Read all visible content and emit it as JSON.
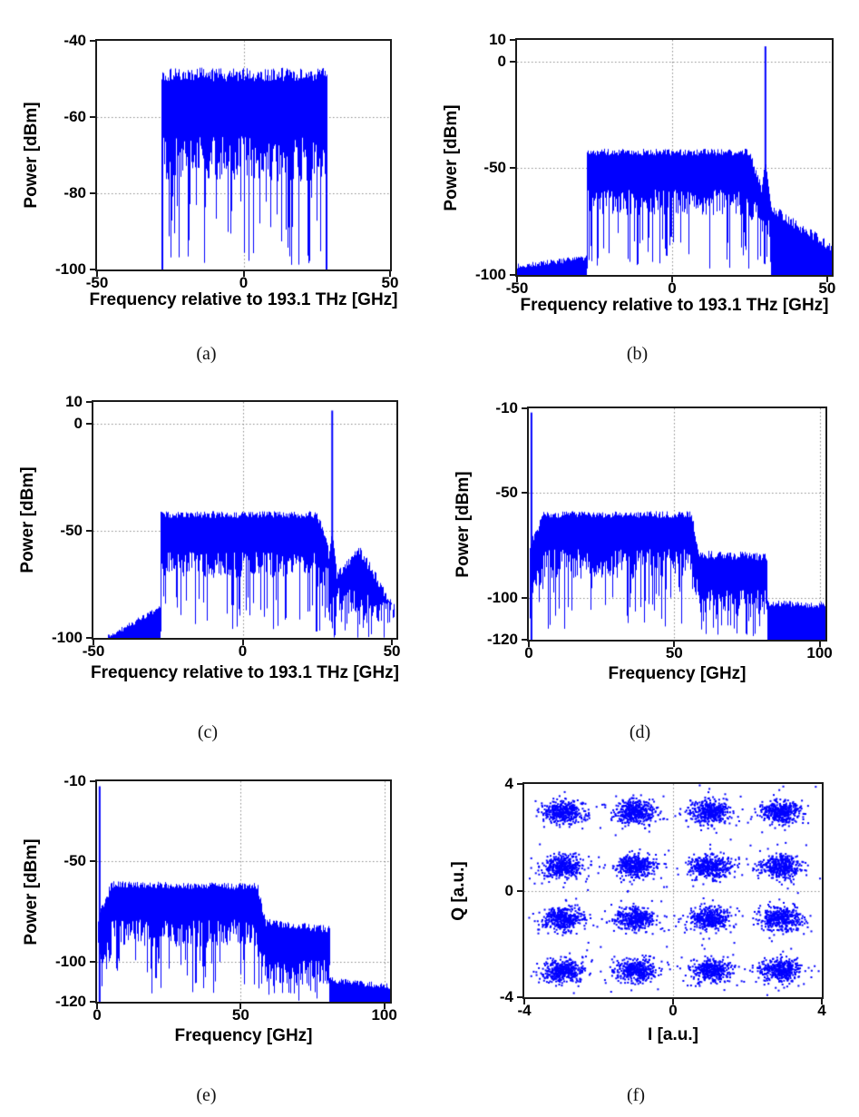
{
  "figure": {
    "background": "#ffffff"
  },
  "colors": {
    "series": "#0000ff",
    "frame": "#1a1a1a",
    "grid": "#8a8a8a",
    "text": "#000000"
  },
  "panels": [
    {
      "letter": "(a)"
    },
    {
      "letter": "(b)"
    },
    {
      "letter": "(c)"
    },
    {
      "letter": "(d)"
    },
    {
      "letter": "(e)"
    },
    {
      "letter": "(f)"
    }
  ],
  "chart_data": [
    {
      "id": "a",
      "type": "area",
      "subtype": "rf-spectrum",
      "title": "",
      "xlabel": "Frequency relative to 193.1 THz [GHz]",
      "ylabel": "Power [dBm]",
      "xlim": [
        -50,
        50
      ],
      "ylim": [
        -100,
        -40
      ],
      "xticks": [
        {
          "v": -50,
          "label": "-50"
        },
        {
          "v": 0,
          "label": "0"
        },
        {
          "v": 50,
          "label": "50"
        }
      ],
      "yticks": [
        {
          "v": -40,
          "label": "-40"
        },
        {
          "v": -60,
          "label": "-60"
        },
        {
          "v": -80,
          "label": "-80"
        },
        {
          "v": -100,
          "label": "-100"
        }
      ],
      "grid": {
        "h": [
          -60,
          -80
        ],
        "v": [
          0
        ]
      },
      "legend": "off",
      "seed": 101,
      "segments": [
        {
          "kind": "band",
          "x0": -28,
          "x1": 28.5,
          "top0": -48.8,
          "top1": -48.8,
          "topJitter": 1.8,
          "floor": -71,
          "floorJitter": 6,
          "spikeProb": 0.22,
          "spikeRange": [
            -100,
            -80
          ],
          "edgeDrop": true
        }
      ],
      "spikes": []
    },
    {
      "id": "b",
      "type": "area",
      "subtype": "rf-spectrum",
      "title": "",
      "xlabel": "Frequency relative to 193.1 THz [GHz]",
      "ylabel": "Power [dBm]",
      "xlim": [
        -50,
        51.5
      ],
      "ylim": [
        -100,
        10
      ],
      "xticks": [
        {
          "v": -50,
          "label": "-50"
        },
        {
          "v": 0,
          "label": "0"
        },
        {
          "v": 50,
          "label": "50"
        }
      ],
      "yticks": [
        {
          "v": 10,
          "label": "10"
        },
        {
          "v": 0,
          "label": "0"
        },
        {
          "v": -50,
          "label": "-50"
        },
        {
          "v": -100,
          "label": "-100"
        }
      ],
      "grid": {
        "h": [
          0,
          -50
        ],
        "v": [
          0
        ]
      },
      "legend": "off",
      "seed": 202,
      "segments": [
        {
          "kind": "block",
          "x0": -50,
          "x1": -27.6,
          "top0": -96,
          "top1": -92,
          "topJitter": 1.3
        },
        {
          "kind": "band",
          "x0": -27.6,
          "x1": 25,
          "top0": -42.5,
          "top1": -42.5,
          "topJitter": 1.6,
          "floor": -66,
          "floorJitter": 6,
          "spikeProb": 0.2,
          "spikeRange": [
            -97,
            -80
          ],
          "edgeDrop": true
        },
        {
          "kind": "band",
          "x0": 25,
          "x1": 28.6,
          "top0": -43.5,
          "top1": -58,
          "topJitter": 2,
          "floor": -70,
          "floorJitter": 5,
          "spikeProb": 0.25,
          "spikeRange": [
            -95,
            -82
          ]
        },
        {
          "kind": "triangle",
          "x0": 28.6,
          "x1": 31.8,
          "peakX": 30.1,
          "topEdge0": -64,
          "topPeak": -46,
          "topEdge1": -66,
          "floor": -78,
          "floorJitter": 6,
          "spikeProb": 0.3,
          "spikeRange": [
            -98,
            -86
          ]
        },
        {
          "kind": "block",
          "x0": 31.8,
          "x1": 52,
          "top0": -69,
          "top1": -87.5,
          "topJitter": 2.5
        }
      ],
      "spikes": [
        {
          "x": 30.1,
          "top": 7,
          "base": -50,
          "w": 2
        }
      ]
    },
    {
      "id": "c",
      "type": "area",
      "subtype": "rf-spectrum",
      "title": "",
      "xlabel": "Frequency relative to 193.1 THz [GHz]",
      "ylabel": "Power [dBm]",
      "xlim": [
        -50,
        51.5
      ],
      "ylim": [
        -100,
        10
      ],
      "xticks": [
        {
          "v": -50,
          "label": "-50"
        },
        {
          "v": 0,
          "label": "0"
        },
        {
          "v": 50,
          "label": "50"
        }
      ],
      "yticks": [
        {
          "v": 10,
          "label": "10"
        },
        {
          "v": 0,
          "label": "0"
        },
        {
          "v": -50,
          "label": "-50"
        },
        {
          "v": -100,
          "label": "-100"
        }
      ],
      "grid": {
        "h": [
          0,
          -50
        ],
        "v": [
          0
        ]
      },
      "legend": "off",
      "seed": 303,
      "segments": [
        {
          "kind": "block",
          "x0": -45,
          "x1": -27.6,
          "top0": -99.5,
          "top1": -86,
          "topJitter": 1.2
        },
        {
          "kind": "band",
          "x0": -27.6,
          "x1": 25,
          "top0": -42.5,
          "top1": -42.5,
          "topJitter": 1.6,
          "floor": -66,
          "floorJitter": 6,
          "spikeProb": 0.2,
          "spikeRange": [
            -97,
            -80
          ],
          "edgeDrop": true
        },
        {
          "kind": "band",
          "x0": 25,
          "x1": 28.6,
          "top0": -43.5,
          "top1": -56,
          "topJitter": 2,
          "floor": -72,
          "floorJitter": 5,
          "spikeProb": 0.3,
          "spikeRange": [
            -98,
            -84
          ]
        },
        {
          "kind": "triangle",
          "x0": 28.6,
          "x1": 31.5,
          "peakX": 30.0,
          "topEdge0": -66,
          "topPeak": -50,
          "topEdge1": -68,
          "floor": -85,
          "floorJitter": 6,
          "spikeProb": 0.5,
          "spikeRange": [
            -100,
            -90
          ]
        },
        {
          "kind": "band",
          "x0": 31.5,
          "x1": 39,
          "top0": -71,
          "top1": -58.5,
          "topJitter": 2.2,
          "floor": -82,
          "floorJitter": 6,
          "spikeProb": 0.3,
          "spikeRange": [
            -100,
            -88
          ]
        },
        {
          "kind": "band",
          "x0": 39,
          "x1": 51.5,
          "top0": -58.5,
          "top1": -88,
          "topJitter": 2.5,
          "floor": -86,
          "floorJitter": 6,
          "spikeProb": 0.3,
          "spikeRange": [
            -100,
            -92
          ]
        }
      ],
      "spikes": [
        {
          "x": 30.0,
          "top": 6,
          "base": -55,
          "w": 2
        }
      ]
    },
    {
      "id": "d",
      "type": "area",
      "subtype": "rf-spectrum",
      "title": "",
      "xlabel": "Frequency [GHz]",
      "ylabel": "Power [dBm]",
      "xlim": [
        0,
        102
      ],
      "ylim": [
        -120,
        -10
      ],
      "xticks": [
        {
          "v": 0,
          "label": "0"
        },
        {
          "v": 50,
          "label": "50"
        },
        {
          "v": 100,
          "label": "100"
        }
      ],
      "yticks": [
        {
          "v": -10,
          "label": "-10"
        },
        {
          "v": -50,
          "label": "-50"
        },
        {
          "v": -100,
          "label": "-100"
        },
        {
          "v": -120,
          "label": "-120"
        }
      ],
      "grid": {
        "h": [
          -50,
          -100
        ],
        "v": [
          50,
          100
        ]
      },
      "legend": "off",
      "seed": 404,
      "segments": [
        {
          "kind": "band",
          "x0": 0.4,
          "x1": 5,
          "top0": -76,
          "top1": -61,
          "topJitter": 2.2,
          "floor": -92,
          "floorJitter": 6,
          "spikeProb": 0.25,
          "spikeRange": [
            -112,
            -98
          ]
        },
        {
          "kind": "band",
          "x0": 5,
          "x1": 56,
          "top0": -60.5,
          "top1": -60.5,
          "topJitter": 1.6,
          "floor": -84,
          "floorJitter": 7,
          "spikeProb": 0.2,
          "spikeRange": [
            -115,
            -95
          ]
        },
        {
          "kind": "band",
          "x0": 56,
          "x1": 58.5,
          "top0": -61.5,
          "top1": -78,
          "topJitter": 2,
          "floor": -95,
          "floorJitter": 6,
          "spikeProb": 0.3,
          "spikeRange": [
            -118,
            -104
          ]
        },
        {
          "kind": "band",
          "x0": 58.5,
          "x1": 82,
          "top0": -79.5,
          "top1": -80.5,
          "topJitter": 2,
          "floor": -102,
          "floorJitter": 6,
          "spikeProb": 0.25,
          "spikeRange": [
            -119,
            -108
          ]
        },
        {
          "kind": "block",
          "x0": 82,
          "x1": 102,
          "top0": -102.5,
          "top1": -103.5,
          "topJitter": 1.5
        }
      ],
      "spikes": [
        {
          "x": 0.9,
          "top": -12,
          "base": -120,
          "w": 2
        }
      ]
    },
    {
      "id": "e",
      "type": "area",
      "subtype": "rf-spectrum",
      "title": "",
      "xlabel": "Frequency [GHz]",
      "ylabel": "Power [dBm]",
      "xlim": [
        0,
        102
      ],
      "ylim": [
        -120,
        -10
      ],
      "xticks": [
        {
          "v": 0,
          "label": "0"
        },
        {
          "v": 50,
          "label": "50"
        },
        {
          "v": 100,
          "label": "100"
        }
      ],
      "yticks": [
        {
          "v": -10,
          "label": "-10"
        },
        {
          "v": -50,
          "label": "-50"
        },
        {
          "v": -100,
          "label": "-100"
        },
        {
          "v": -120,
          "label": "-120"
        }
      ],
      "grid": {
        "h": [
          -50,
          -100
        ],
        "v": [
          50,
          100
        ]
      },
      "legend": "off",
      "seed": 505,
      "segments": [
        {
          "kind": "band",
          "x0": 0.4,
          "x1": 5,
          "top0": -78,
          "top1": -62,
          "topJitter": 2.4,
          "floor": -95,
          "floorJitter": 6,
          "spikeProb": 0.3,
          "spikeRange": [
            -115,
            -100
          ]
        },
        {
          "kind": "band",
          "x0": 5,
          "x1": 56,
          "top0": -61.5,
          "top1": -62.5,
          "topJitter": 1.7,
          "floor": -86,
          "floorJitter": 7,
          "spikeProb": 0.2,
          "spikeRange": [
            -116,
            -98
          ]
        },
        {
          "kind": "band",
          "x0": 56,
          "x1": 58.5,
          "top0": -63,
          "top1": -79,
          "topJitter": 2,
          "floor": -98,
          "floorJitter": 6,
          "spikeProb": 0.3,
          "spikeRange": [
            -119,
            -106
          ]
        },
        {
          "kind": "band",
          "x0": 58.5,
          "x1": 81,
          "top0": -80.5,
          "top1": -84,
          "topJitter": 2,
          "floor": -105,
          "floorJitter": 6,
          "spikeProb": 0.3,
          "spikeRange": [
            -120,
            -110
          ]
        },
        {
          "kind": "block",
          "x0": 81,
          "x1": 102,
          "top0": -109,
          "top1": -112.5,
          "topJitter": 1.6
        }
      ],
      "spikes": [
        {
          "x": 0.9,
          "top": -12.5,
          "base": -120,
          "w": 2
        }
      ]
    },
    {
      "id": "f",
      "type": "scatter",
      "subtype": "constellation-16qam",
      "title": "",
      "xlabel": "I [a.u.]",
      "ylabel": "Q [a.u.]",
      "xlim": [
        -4,
        4
      ],
      "ylim": [
        -4,
        4
      ],
      "xticks": [
        {
          "v": -4,
          "label": "-4"
        },
        {
          "v": 0,
          "label": "0"
        },
        {
          "v": 4,
          "label": "4"
        }
      ],
      "yticks": [
        {
          "v": 4,
          "label": "4"
        },
        {
          "v": 0,
          "label": "0"
        },
        {
          "v": -4,
          "label": "-4"
        }
      ],
      "grid": {
        "h": [
          0
        ],
        "v": [
          0
        ]
      },
      "legend": "off",
      "seed": 606,
      "clusters": {
        "centersI": [
          -2.95,
          -1.0,
          1.0,
          2.9
        ],
        "centersQ": [
          2.95,
          0.9,
          -1.05,
          -3.0
        ],
        "sigmaI": 0.27,
        "sigmaQ": 0.21,
        "pointsPerCluster": 430,
        "outlierProb": 0.05,
        "outlierScale": 2.1,
        "pointSize": 2
      }
    }
  ]
}
